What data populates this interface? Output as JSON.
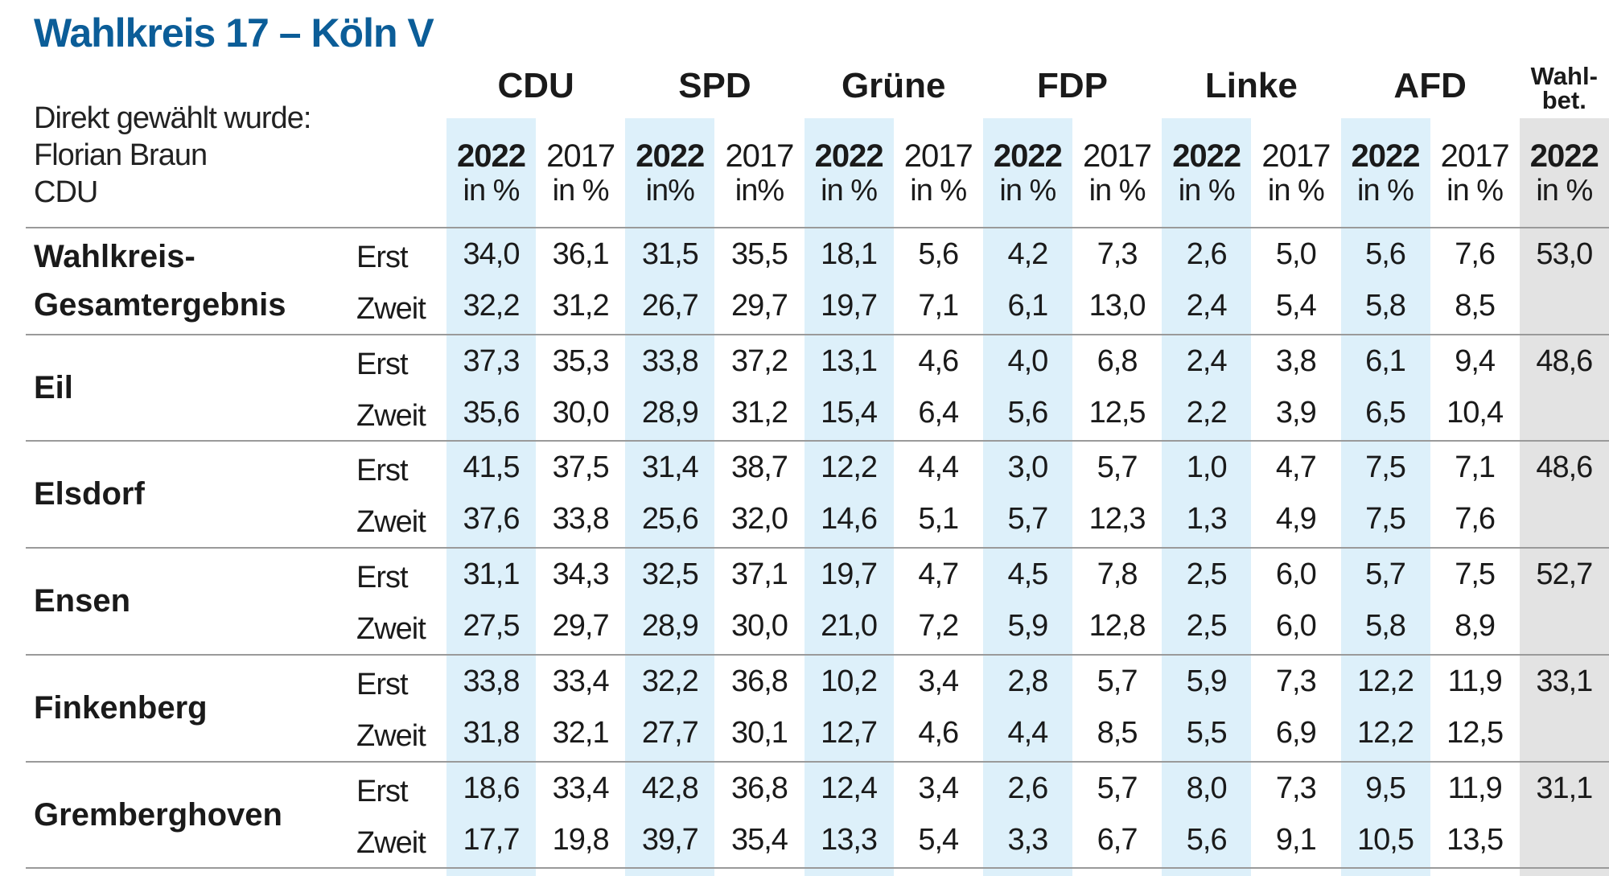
{
  "title": "Wahlkreis 17 – Köln V",
  "winner": {
    "line1": "Direkt gewählt wurde:",
    "line2": "Florian Braun",
    "line3": "CDU"
  },
  "colors": {
    "title": "#0b5d98",
    "highlight_column": "#ddf0fa",
    "turnout_column": "#e3e3e3"
  },
  "parties": [
    "CDU",
    "SPD",
    "Grüne",
    "FDP",
    "Linke",
    "AFD"
  ],
  "turnout_header": {
    "line1": "Wahl-",
    "line2": "bet."
  },
  "year_headers": [
    {
      "year": "2022",
      "unit": "in %"
    },
    {
      "year": "2017",
      "unit": "in %"
    },
    {
      "year": "2022",
      "unit": "in%"
    },
    {
      "year": "2017",
      "unit": "in%"
    },
    {
      "year": "2022",
      "unit": "in %"
    },
    {
      "year": "2017",
      "unit": "in %"
    },
    {
      "year": "2022",
      "unit": "in %"
    },
    {
      "year": "2017",
      "unit": "in %"
    },
    {
      "year": "2022",
      "unit": "in %"
    },
    {
      "year": "2017",
      "unit": "in %"
    },
    {
      "year": "2022",
      "unit": "in %"
    },
    {
      "year": "2017",
      "unit": "in %"
    },
    {
      "year": "2022",
      "unit": "in %"
    }
  ],
  "vote_types": {
    "first": "Erst",
    "second": "Zweit"
  },
  "rows": [
    {
      "label": [
        "Wahlkreis-",
        "Gesamtergebnis"
      ],
      "erst": [
        "34,0",
        "36,1",
        "31,5",
        "35,5",
        "18,1",
        "5,6",
        "4,2",
        "7,3",
        "2,6",
        "5,0",
        "5,6",
        "7,6",
        "53,0"
      ],
      "zweit": [
        "32,2",
        "31,2",
        "26,7",
        "29,7",
        "19,7",
        "7,1",
        "6,1",
        "13,0",
        "2,4",
        "5,4",
        "5,8",
        "8,5",
        ""
      ]
    },
    {
      "label": [
        "Eil"
      ],
      "erst": [
        "37,3",
        "35,3",
        "33,8",
        "37,2",
        "13,1",
        "4,6",
        "4,0",
        "6,8",
        "2,4",
        "3,8",
        "6,1",
        "9,4",
        "48,6"
      ],
      "zweit": [
        "35,6",
        "30,0",
        "28,9",
        "31,2",
        "15,4",
        "6,4",
        "5,6",
        "12,5",
        "2,2",
        "3,9",
        "6,5",
        "10,4",
        ""
      ]
    },
    {
      "label": [
        "Elsdorf"
      ],
      "erst": [
        "41,5",
        "37,5",
        "31,4",
        "38,7",
        "12,2",
        "4,4",
        "3,0",
        "5,7",
        "1,0",
        "4,7",
        "7,5",
        "7,1",
        "48,6"
      ],
      "zweit": [
        "37,6",
        "33,8",
        "25,6",
        "32,0",
        "14,6",
        "5,1",
        "5,7",
        "12,3",
        "1,3",
        "4,9",
        "7,5",
        "7,6",
        ""
      ]
    },
    {
      "label": [
        "Ensen"
      ],
      "erst": [
        "31,1",
        "34,3",
        "32,5",
        "37,1",
        "19,7",
        "4,7",
        "4,5",
        "7,8",
        "2,5",
        "6,0",
        "5,7",
        "7,5",
        "52,7"
      ],
      "zweit": [
        "27,5",
        "29,7",
        "28,9",
        "30,0",
        "21,0",
        "7,2",
        "5,9",
        "12,8",
        "2,5",
        "6,0",
        "5,8",
        "8,9",
        ""
      ]
    },
    {
      "label": [
        "Finkenberg"
      ],
      "erst": [
        "33,8",
        "33,4",
        "32,2",
        "36,8",
        "10,2",
        "3,4",
        "2,8",
        "5,7",
        "5,9",
        "7,3",
        "12,2",
        "11,9",
        "33,1"
      ],
      "zweit": [
        "31,8",
        "32,1",
        "27,7",
        "30,1",
        "12,7",
        "4,6",
        "4,4",
        "8,5",
        "5,5",
        "6,9",
        "12,2",
        "12,5",
        ""
      ]
    },
    {
      "label": [
        "Gremberghoven"
      ],
      "erst": [
        "18,6",
        "33,4",
        "42,8",
        "36,8",
        "12,4",
        "3,4",
        "2,6",
        "5,7",
        "8,0",
        "7,3",
        "9,5",
        "11,9",
        "31,1"
      ],
      "zweit": [
        "17,7",
        "19,8",
        "39,7",
        "35,4",
        "13,3",
        "5,4",
        "3,3",
        "6,7",
        "5,6",
        "9,1",
        "10,5",
        "13,5",
        ""
      ]
    }
  ]
}
